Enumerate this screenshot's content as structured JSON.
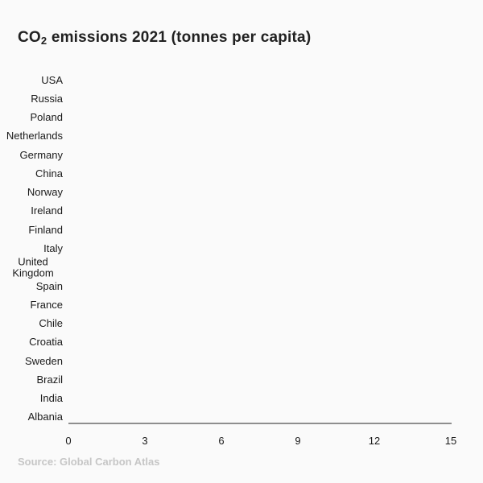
{
  "title": {
    "prefix": "CO",
    "subscript": "2",
    "suffix": " emissions 2021 (tonnes per capita)",
    "full": "CO₂ emissions 2021 (tonnes per capita)"
  },
  "source": "Source: Global Carbon Atlas",
  "colors": {
    "background": "#fafafa",
    "title_text": "#212121",
    "label_text": "#1a1a1a",
    "axis_line": "#8e8e8e",
    "source_text": "#c6c6c6"
  },
  "chart_data": {
    "type": "bar",
    "orientation": "horizontal",
    "title": "CO₂ emissions 2021 (tonnes per capita)",
    "categories": [
      "USA",
      "Russia",
      "Poland",
      "Netherlands",
      "Germany",
      "China",
      "Norway",
      "Ireland",
      "Finland",
      "Italy",
      "United Kingdom",
      "Spain",
      "France",
      "Chile",
      "Croatia",
      "Sweden",
      "Brazil",
      "India",
      "Albania"
    ],
    "values": [
      0,
      0,
      0,
      0,
      0,
      0,
      0,
      0,
      0,
      0,
      0,
      0,
      0,
      0,
      0,
      0,
      0,
      0,
      0
    ],
    "note": "No bars are drawn in this frame; all bars have zero length (empty/start state of the chart)",
    "xlim": [
      0,
      15
    ],
    "x_ticks": [
      0,
      3,
      6,
      9,
      12,
      15
    ],
    "xlabel": "",
    "ylabel": "",
    "grid": false,
    "legend": false
  }
}
